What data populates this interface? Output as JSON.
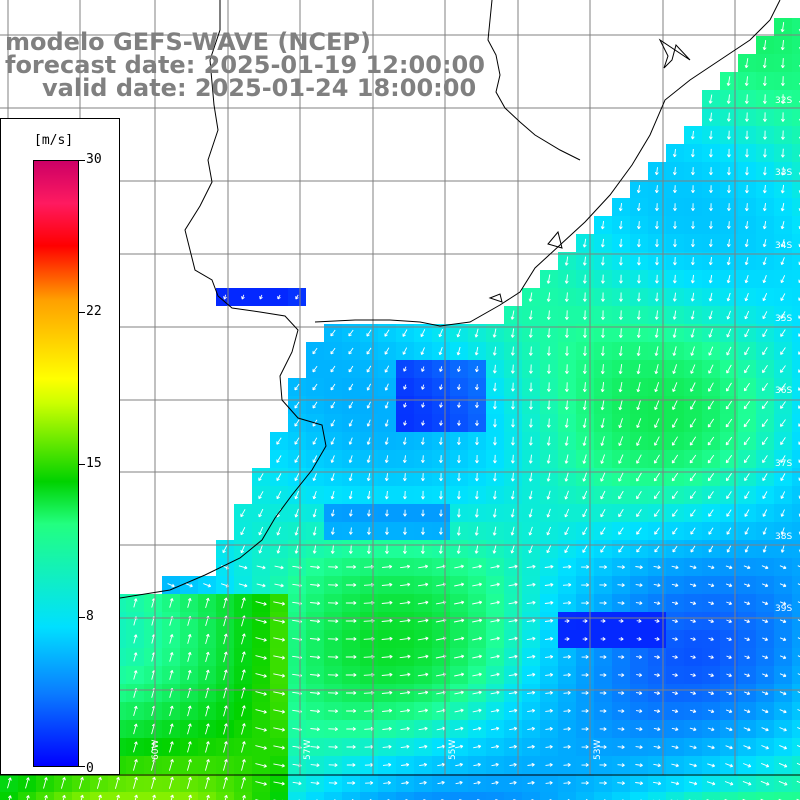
{
  "title": {
    "line1": "modelo GEFS-WAVE (NCEP)",
    "line2": "forecast date: 2025-01-19 12:00:00",
    "line3": "valid date: 2025-01-24 18:00:00"
  },
  "colorbar": {
    "unit": "[m/s]",
    "ticks": [
      "30",
      "22",
      "15",
      "8",
      "0"
    ],
    "min": 0,
    "max": 30
  },
  "map": {
    "quantity": "wind speed",
    "colors": {
      "land": "#ffffff",
      "coastline": "#000000",
      "grid": "#808080",
      "arrow": "#ffffff"
    },
    "gridline_count": 11
  }
}
